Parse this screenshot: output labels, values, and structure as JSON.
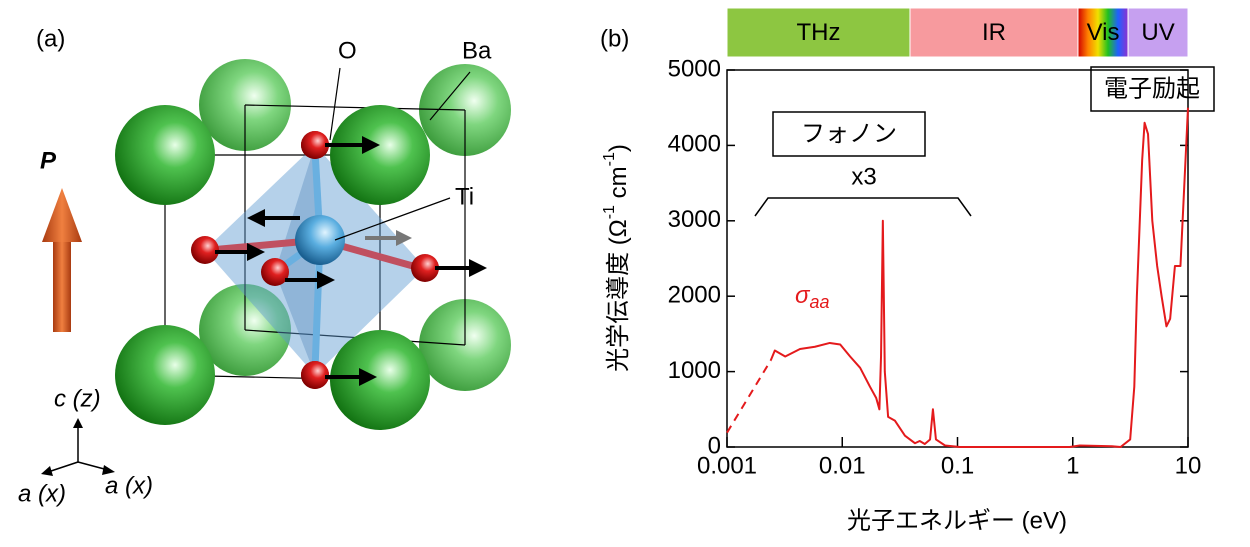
{
  "panel_a": {
    "label": "(a)",
    "oxygen": "O",
    "barium": "Ba",
    "titanium": "Ti",
    "polarization": "P",
    "axis_c": "c (z)",
    "axis_a1": "a (x)",
    "axis_a2": "a (x)"
  },
  "chart_data": {
    "type": "line",
    "panel_label": "(b)",
    "xlabel": "光子エネルギー (eV)",
    "ylabel_parts": [
      "光学伝導度 (Ω",
      "-1",
      " cm",
      "-1",
      ")"
    ],
    "xscale": "log",
    "xlim": [
      0.001,
      10
    ],
    "xticks": [
      0.001,
      0.01,
      0.1,
      1,
      10
    ],
    "ylim": [
      0,
      5000
    ],
    "yticks": [
      0,
      1000,
      2000,
      3000,
      4000,
      5000
    ],
    "bands": [
      {
        "label": "THz",
        "color": "#8dc641",
        "from": 0.001,
        "to": 0.0387
      },
      {
        "label": "IR",
        "color": "#f79a9e",
        "from": 0.0387,
        "to": 1.11
      },
      {
        "label": "Vis",
        "color": "rainbow",
        "from": 1.11,
        "to": 3.02
      },
      {
        "label": "UV",
        "color": "#c6a0f0",
        "from": 3.02,
        "to": 10
      }
    ],
    "series": [
      {
        "color": "#e41a1c",
        "dashed": true,
        "x": [
          0.001,
          0.0024
        ],
        "values": [
          190,
          1150
        ]
      },
      {
        "color": "#e41a1c",
        "dashed": false,
        "x": [
          0.0024,
          0.0026,
          0.0032,
          0.0043,
          0.0058,
          0.0078,
          0.0096,
          0.0117,
          0.0143,
          0.0174,
          0.0197,
          0.021,
          0.0217,
          0.0225,
          0.0234,
          0.025,
          0.0286,
          0.035,
          0.0427,
          0.047,
          0.052,
          0.0578,
          0.0612,
          0.065,
          0.078,
          0.105,
          0.234,
          0.94,
          1.15,
          2.19,
          2.6,
          3.15,
          3.42,
          3.6,
          4.0,
          4.2,
          4.5,
          4.9,
          5.4,
          5.9,
          6.5,
          7.0,
          7.7,
          8.6,
          10
        ],
        "values": [
          1150,
          1280,
          1200,
          1300,
          1330,
          1380,
          1360,
          1200,
          1050,
          800,
          650,
          500,
          1200,
          3000,
          1000,
          400,
          350,
          150,
          50,
          80,
          40,
          100,
          500,
          100,
          20,
          0,
          0,
          0,
          20,
          10,
          0,
          100,
          800,
          2000,
          3800,
          4300,
          4150,
          3000,
          2400,
          2000,
          1600,
          1700,
          2400,
          2400,
          4500
        ]
      }
    ],
    "annotations": {
      "phonon": "フォノン",
      "factor": "x3",
      "electronic": "電子励起",
      "sigma": "σ",
      "sigma_sub": "aa"
    }
  }
}
